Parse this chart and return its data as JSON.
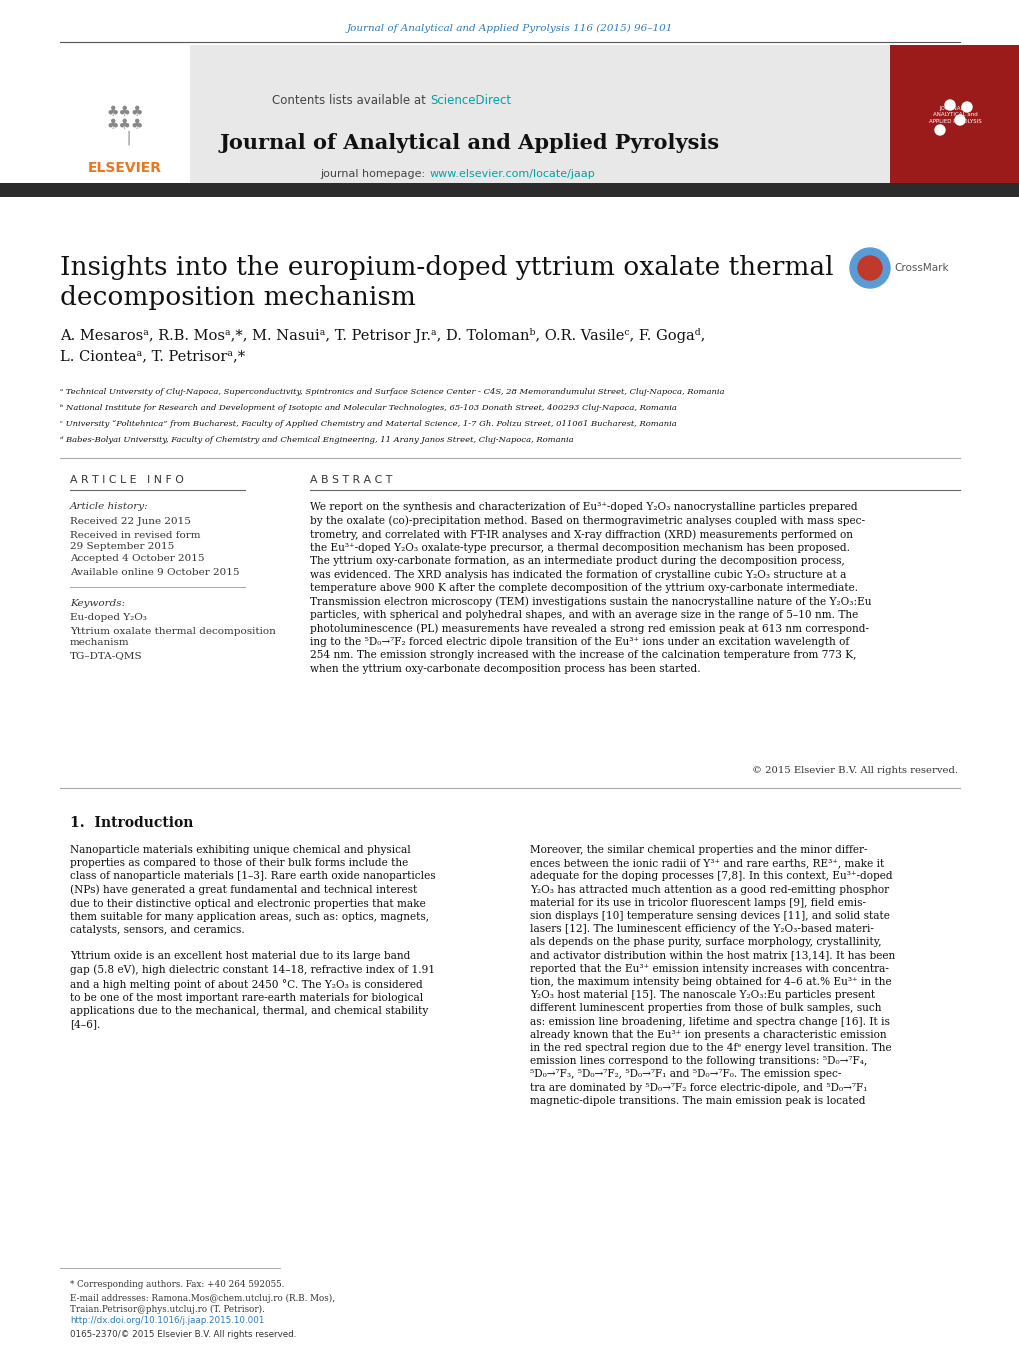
{
  "bg_color": "#ffffff",
  "top_header_color": "#2e7bbd",
  "top_header_text": "Journal of Analytical and Applied Pyrolysis 116 (2015) 96–101",
  "journal_header_bg": "#e8e8e8",
  "journal_name": "Journal of Analytical and Applied Pyrolysis",
  "contents_text": "Contents lists available at ",
  "sciencedirect_text": "ScienceDirect",
  "homepage_label": "journal homepage: ",
  "homepage_url": "www.elsevier.com/locate/jaap",
  "dark_bar_color": "#2b2b2b",
  "article_title": "Insights into the europium-doped yttrium oxalate thermal\ndecomposition mechanism",
  "authors": "A. Mesarosᵃ, R.B. Mosᵃ,*, M. Nasuiᵃ, T. Petrisor Jr.ᵃ, D. Tolomanᵇ, O.R. Vasileᶜ, F. Gogaᵈ,\nL. Cionteaᵃ, T. Petrisorᵃ,*",
  "affil_a": "ᵃ Technical University of Cluj-Napoca, Superconductivity, Spintronics and Surface Science Center - C4S, 28 Memorandumului Street, Cluj-Napoca, Romania",
  "affil_b": "ᵇ National Institute for Research and Development of Isotopic and Molecular Technologies, 65-103 Donath Street, 400293 Cluj-Napoca, Romania",
  "affil_c": "ᶜ University “Politehnica” from Bucharest, Faculty of Applied Chemistry and Material Science, 1-7 Gh. Polizu Street, 011061 Bucharest, Romania",
  "affil_d": "ᵈ Babes-Bolyai University, Faculty of Chemistry and Chemical Engineering, 11 Arany Janos Street, Cluj-Napoca, Romania",
  "article_info_title": "A R T I C L E   I N F O",
  "abstract_title": "A B S T R A C T",
  "article_history_label": "Article history:",
  "received": "Received 22 June 2015",
  "revised": "Received in revised form\n29 September 2015",
  "accepted": "Accepted 4 October 2015",
  "available": "Available online 9 October 2015",
  "keywords_label": "Keywords:",
  "keyword1": "Eu-doped Y₂O₃",
  "keyword2": "Yttrium oxalate thermal decomposition\nmechanism",
  "keyword3": "TG–DTA-QMS",
  "abstract_text": "We report on the synthesis and characterization of Eu³⁺-doped Y₂O₃ nanocrystalline particles prepared\nby the oxalate (co)-precipitation method. Based on thermogravimetric analyses coupled with mass spec-\ntrometry, and correlated with FT-IR analyses and X-ray diffraction (XRD) measurements performed on\nthe Eu³⁺-doped Y₂O₃ oxalate-type precursor, a thermal decomposition mechanism has been proposed.\nThe yttrium oxy-carbonate formation, as an intermediate product during the decomposition process,\nwas evidenced. The XRD analysis has indicated the formation of crystalline cubic Y₂O₃ structure at a\ntemperature above 900 K after the complete decomposition of the yttrium oxy-carbonate intermediate.\nTransmission electron microscopy (TEM) investigations sustain the nanocrystalline nature of the Y₂O₃:Eu\nparticles, with spherical and polyhedral shapes, and with an average size in the range of 5–10 nm. The\nphotoluminescence (PL) measurements have revealed a strong red emission peak at 613 nm correspond-\ning to the ⁵D₀→⁷F₂ forced electric dipole transition of the Eu³⁺ ions under an excitation wavelength of\n254 nm. The emission strongly increased with the increase of the calcination temperature from 773 K,\nwhen the yttrium oxy-carbonate decomposition process has been started.",
  "copyright_text": "© 2015 Elsevier B.V. All rights reserved.",
  "section1_title": "1.  Introduction",
  "intro_col1": "Nanoparticle materials exhibiting unique chemical and physical\nproperties as compared to those of their bulk forms include the\nclass of nanoparticle materials [1–3]. Rare earth oxide nanoparticles\n(NPs) have generated a great fundamental and technical interest\ndue to their distinctive optical and electronic properties that make\nthem suitable for many application areas, such as: optics, magnets,\ncatalysts, sensors, and ceramics.\n\nYttrium oxide is an excellent host material due to its large band\ngap (5.8 eV), high dielectric constant 14–18, refractive index of 1.91\nand a high melting point of about 2450 °C. The Y₂O₃ is considered\nto be one of the most important rare-earth materials for biological\napplications due to the mechanical, thermal, and chemical stability\n[4–6].",
  "intro_col2": "Moreover, the similar chemical properties and the minor differ-\nences between the ionic radii of Y³⁺ and rare earths, RE³⁺, make it\nadequate for the doping processes [7,8]. In this context, Eu³⁺-doped\nY₂O₃ has attracted much attention as a good red-emitting phosphor\nmaterial for its use in tricolor fluorescent lamps [9], field emis-\nsion displays [10] temperature sensing devices [11], and solid state\nlasers [12]. The luminescent efficiency of the Y₂O₃-based materi-\nals depends on the phase purity, surface morphology, crystallinity,\nand activator distribution within the host matrix [13,14]. It has been\nreported that the Eu³⁺ emission intensity increases with concentra-\ntion, the maximum intensity being obtained for 4–6 at.% Eu³⁺ in the\nY₂O₃ host material [15]. The nanoscale Y₂O₃:Eu particles present\ndifferent luminescent properties from those of bulk samples, such\nas: emission line broadening, lifetime and spectra change [16]. It is\nalready known that the Eu³⁺ ion presents a characteristic emission\nin the red spectral region due to the 4fᵉ energy level transition. The\nemission lines correspond to the following transitions: ⁵D₀→⁷F₄,\n⁵D₀→⁷F₃, ⁵D₀→⁷F₂, ⁵D₀→⁷F₁ and ⁵D₀→⁷F₀. The emission spec-\ntra are dominated by ⁵D₀→⁷F₂ force electric-dipole, and ⁵D₀→⁷F₁\nmagnetic-dipole transitions. The main emission peak is located",
  "footnote_star": "* Corresponding authors. Fax: +40 264 592055.",
  "footnote_email": "E-mail addresses: Ramona.Mos@chem.utcluj.ro (R.B. Mos),\nTraian.Petrisor@phys.utcluj.ro (T. Petrisor).",
  "footnote_doi": "http://dx.doi.org/10.1016/j.jaap.2015.10.001",
  "footnote_issn": "0165-2370/© 2015 Elsevier B.V. All rights reserved.",
  "link_color": "#2e7bbd",
  "link_color2": "#00a3a3",
  "elsevier_orange": "#e87722",
  "cover_red": "#9b1a1a",
  "text_color": "#111111",
  "meta_color": "#333333"
}
